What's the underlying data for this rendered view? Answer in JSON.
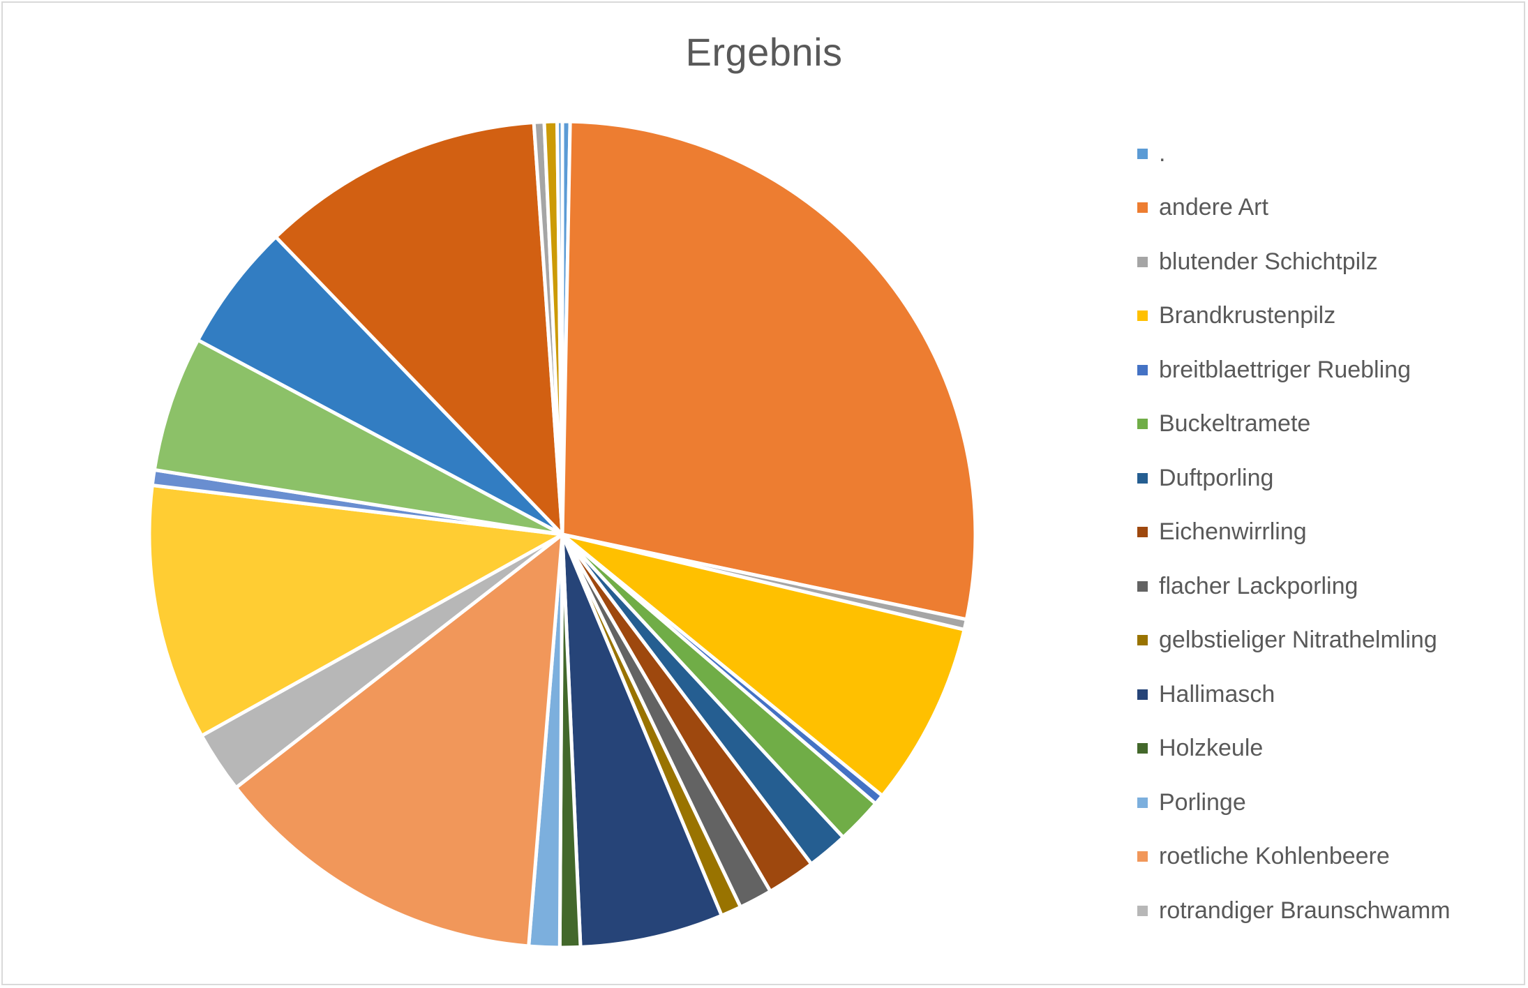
{
  "chart_data": {
    "type": "pie",
    "title": "Ergebnis",
    "legend_position": "right",
    "categories": [
      ".",
      "andere Art",
      "blutender Schichtpilz",
      "Brandkrustenpilz",
      "breitblaettriger Ruebling",
      "Buckeltramete",
      "Duftporling",
      "Eichenwirrling",
      "flacher Lackporling",
      "gelbstieliger Nitrathelmling",
      "Hallimasch",
      "Holzkeule",
      "Porlinge",
      "roetliche Kohlenbeere",
      "rotrandiger Braunschwamm"
    ],
    "legend_colors": [
      "#5B9BD5",
      "#ED7D31",
      "#A5A5A5",
      "#FFC000",
      "#4472C4",
      "#70AD47",
      "#255E91",
      "#9E480E",
      "#636363",
      "#997300",
      "#264478",
      "#43682B",
      "#7CAFDD",
      "#F1975A",
      "#B7B7B7"
    ],
    "slices": [
      {
        "name": ".",
        "value": 0.3,
        "color": "#5B9BD5"
      },
      {
        "name": "andere Art",
        "value": 28.0,
        "color": "#ED7D31"
      },
      {
        "name": "blutender Schichtpilz",
        "value": 0.4,
        "color": "#A5A5A5"
      },
      {
        "name": "Brandkrustenpilz",
        "value": 7.2,
        "color": "#FFC000"
      },
      {
        "name": "breitblaettriger Ruebling",
        "value": 0.4,
        "color": "#4472C4"
      },
      {
        "name": "Buckeltramete",
        "value": 1.8,
        "color": "#70AD47"
      },
      {
        "name": "Duftporling",
        "value": 1.6,
        "color": "#255E91"
      },
      {
        "name": "Eichenwirrling",
        "value": 1.9,
        "color": "#9E480E"
      },
      {
        "name": "flacher Lackporling",
        "value": 1.3,
        "color": "#636363"
      },
      {
        "name": "gelbstieliger Nitrathelmling",
        "value": 0.8,
        "color": "#997300"
      },
      {
        "name": "Hallimasch",
        "value": 5.6,
        "color": "#264478"
      },
      {
        "name": "Holzkeule",
        "value": 0.8,
        "color": "#43682B"
      },
      {
        "name": "Porlinge",
        "value": 1.2,
        "color": "#7CAFDD"
      },
      {
        "name": "roetliche Kohlenbeere",
        "value": 13.2,
        "color": "#F1975A"
      },
      {
        "name": "rotrandiger Braunschwamm",
        "value": 2.4,
        "color": "#B7B7B7"
      },
      {
        "name": "",
        "value": 10.0,
        "color": "#FFCD33"
      },
      {
        "name": "",
        "value": 0.6,
        "color": "#698ED0"
      },
      {
        "name": "",
        "value": 5.3,
        "color": "#8CC168"
      },
      {
        "name": "",
        "value": 5.0,
        "color": "#327DC2"
      },
      {
        "name": "",
        "value": 11.1,
        "color": "#D26012"
      },
      {
        "name": "",
        "value": 0.4,
        "color": "#A5A5A5"
      },
      {
        "name": "",
        "value": 0.5,
        "color": "#CC9A06"
      },
      {
        "name": "",
        "value": 0.2,
        "color": "#5B9BD5"
      }
    ]
  }
}
